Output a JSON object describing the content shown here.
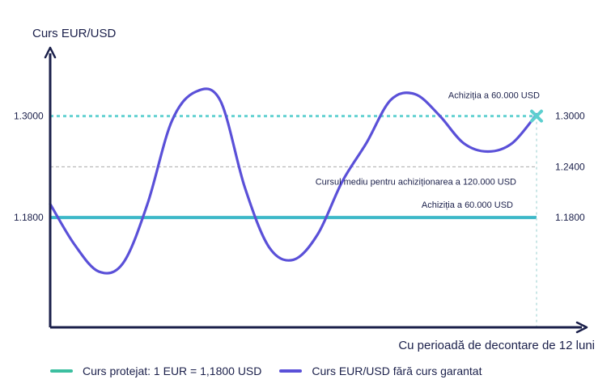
{
  "chart_data": {
    "type": "line",
    "ylabel": "Curs EUR/USD",
    "xlabel": "Cu perioadă de decontare de 12 luni",
    "y_ticks_left": [
      "1.3000",
      "1.1800"
    ],
    "y_ticks_right": [
      "1.3000",
      "1.2400",
      "1.1800"
    ],
    "ylim": [
      1.05,
      1.38
    ],
    "xlim": [
      0,
      12
    ],
    "grid": false,
    "reference_lines": [
      {
        "y": 1.3,
        "style": "dotted",
        "color": "#66d2d2",
        "label": "Achiziția a 60.000 USD"
      },
      {
        "y": 1.24,
        "style": "dashed",
        "color": "#aaaaaa",
        "label": "Cursul mediu pentru achiziționarea a 120.000 USD"
      },
      {
        "y": 1.18,
        "style": "solid",
        "color": "#3cb8c8",
        "label": "Achiziția a 60.000 USD"
      }
    ],
    "series": [
      {
        "name": "Curs EUR/USD fără curs garantat",
        "color": "#5a50d8",
        "x": [
          0,
          0.6,
          1.2,
          1.8,
          2.4,
          3.0,
          3.6,
          4.2,
          4.8,
          5.4,
          6.0,
          6.6,
          7.2,
          7.8,
          8.4,
          9.0,
          9.6,
          10.2,
          10.8,
          11.4,
          12.0
        ],
        "values": [
          1.196,
          1.148,
          1.116,
          1.126,
          1.196,
          1.294,
          1.329,
          1.318,
          1.216,
          1.145,
          1.13,
          1.16,
          1.222,
          1.268,
          1.319,
          1.326,
          1.301,
          1.268,
          1.258,
          1.268,
          1.302
        ]
      }
    ],
    "end_marker": {
      "x": 12,
      "y": 1.3,
      "color": "#5ccfcf",
      "shape": "x"
    }
  },
  "legend": {
    "protected_label": "Curs protejat: 1 EUR = 1,1800 USD",
    "protected_color": "#3cbfa0",
    "market_label": "Curs EUR/USD fără curs garantat",
    "market_color": "#5a50d8"
  }
}
